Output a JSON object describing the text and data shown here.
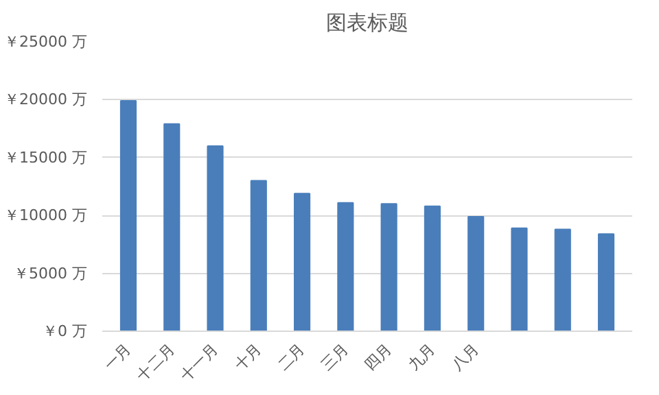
{
  "chart_data": {
    "type": "bar",
    "title": "图表标题",
    "categories": [
      "一月",
      "十二月",
      "十一月",
      "十月",
      "二月",
      "三月",
      "四月",
      "九月",
      "八月",
      null,
      null,
      null
    ],
    "values": [
      19900,
      17900,
      16000,
      13000,
      11900,
      11100,
      11000,
      10800,
      9900,
      8900,
      8800,
      8400
    ],
    "color": "#4a7ebb",
    "ylim": [
      0,
      25000
    ],
    "yticks": [
      {
        "value": 0,
        "label": "￥0 万"
      },
      {
        "value": 5000,
        "label": "￥5000 万"
      },
      {
        "value": 10000,
        "label": "￥10000 万"
      },
      {
        "value": 15000,
        "label": "￥15000 万"
      },
      {
        "value": 20000,
        "label": "￥20000 万"
      },
      {
        "value": 25000,
        "label": "￥25000 万"
      }
    ],
    "grid": "y"
  }
}
